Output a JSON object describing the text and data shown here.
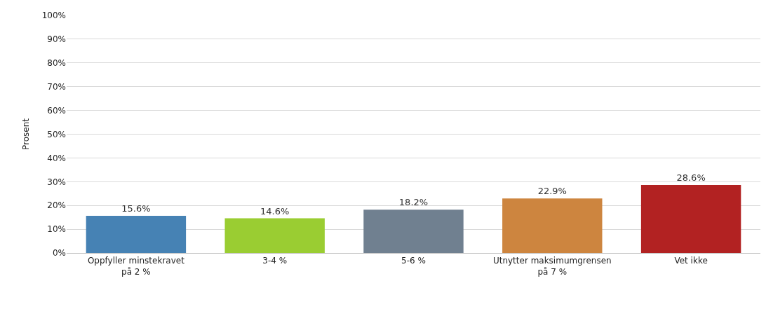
{
  "chart_data": {
    "type": "bar",
    "ylabel": "Prosent",
    "categories": [
      "Oppfyller minstekravet på 2 %",
      "3-4 %",
      "5-6 %",
      "Utnytter maksimumgrensen på 7 %",
      "Vet ikke"
    ],
    "values": [
      15.6,
      14.6,
      18.2,
      22.9,
      28.6
    ],
    "colors": [
      "#4682b4",
      "#9acd32",
      "#708090",
      "#cd853f",
      "#b22222"
    ],
    "value_labels": [
      "15.6%",
      "14.6%",
      "18.2%",
      "22.9%",
      "28.6%"
    ],
    "ylim": [
      0,
      100
    ],
    "yticks": [
      {
        "value": 0,
        "label": "0%"
      },
      {
        "value": 10,
        "label": "10%"
      },
      {
        "value": 20,
        "label": "20%"
      },
      {
        "value": 30,
        "label": "30%"
      },
      {
        "value": 40,
        "label": "40%"
      },
      {
        "value": 50,
        "label": "50%"
      },
      {
        "value": 60,
        "label": "60%"
      },
      {
        "value": 70,
        "label": "70%"
      },
      {
        "value": 80,
        "label": "80%"
      },
      {
        "value": 90,
        "label": "90%"
      },
      {
        "value": 100,
        "label": "100%"
      }
    ],
    "grid": "y"
  }
}
